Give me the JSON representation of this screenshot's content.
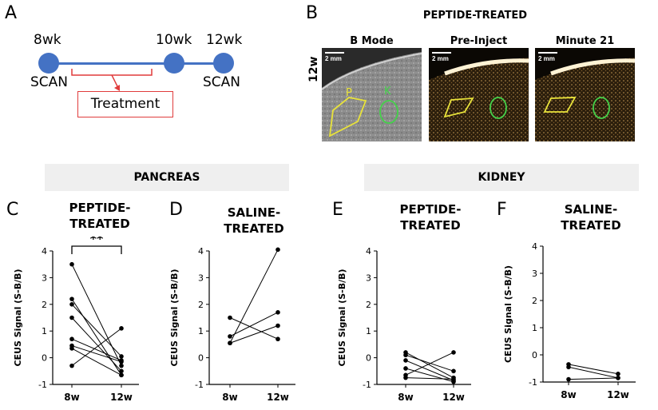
{
  "panels": {
    "a": "A",
    "b": "B",
    "c": "C",
    "d": "D",
    "e": "E",
    "f": "F"
  },
  "timeline": {
    "label_8wk": "8wk",
    "label_10wk": "10wk",
    "label_12wk": "12wk",
    "scan_left": "SCAN",
    "scan_right": "SCAN",
    "treatment": "Treatment",
    "colors": {
      "line": "#4472c4",
      "treatment": "#e03c3c"
    }
  },
  "imaging": {
    "title": "PEPTIDE-TREATED",
    "columns": [
      "B Mode",
      "Pre-Inject",
      "Minute 21"
    ],
    "row_label": "12w",
    "scale": "2 mm",
    "roi_p": "P",
    "roi_k": "K"
  },
  "sections": {
    "pancreas": "PANCREAS",
    "kidney": "KIDNEY"
  },
  "chart_data": [
    {
      "type": "line",
      "title": [
        "PEPTIDE-",
        "TREATED"
      ],
      "ylabel": "CEUS Signal (S-B/B)",
      "categories": [
        "8w",
        "12w"
      ],
      "ylim": [
        -1,
        4
      ],
      "yticks": [
        "-1",
        "0",
        "1",
        "2",
        "3",
        "4"
      ],
      "significance": "**",
      "pairs": [
        [
          3.5,
          -0.3
        ],
        [
          2.2,
          -0.65
        ],
        [
          2.0,
          0.05
        ],
        [
          1.5,
          -0.5
        ],
        [
          0.7,
          -0.1
        ],
        [
          0.45,
          -0.15
        ],
        [
          0.35,
          -0.65
        ],
        [
          -0.3,
          1.1
        ]
      ]
    },
    {
      "type": "line",
      "title": [
        "SALINE-",
        "TREATED"
      ],
      "ylabel": "CEUS Signal (S-B/B)",
      "categories": [
        "8w",
        "12w"
      ],
      "ylim": [
        -1,
        4
      ],
      "yticks": [
        "-1",
        "0",
        "1",
        "2",
        "3",
        "4"
      ],
      "pairs": [
        [
          1.5,
          0.7
        ],
        [
          0.8,
          1.7
        ],
        [
          0.55,
          4.05
        ],
        [
          0.55,
          1.2
        ]
      ]
    },
    {
      "type": "line",
      "title": [
        "PEPTIDE-",
        "TREATED"
      ],
      "ylabel": "CEUS Signal (S-B/B)",
      "categories": [
        "8w",
        "12w"
      ],
      "ylim": [
        -1,
        4
      ],
      "yticks": [
        "-1",
        "0",
        "1",
        "2",
        "3",
        "4"
      ],
      "pairs": [
        [
          0.2,
          -0.75
        ],
        [
          0.1,
          -0.5
        ],
        [
          -0.1,
          -0.85
        ],
        [
          -0.4,
          -0.9
        ],
        [
          -0.65,
          0.2
        ],
        [
          -0.75,
          -0.8
        ]
      ]
    },
    {
      "type": "line",
      "title": [
        "SALINE-",
        "TREATED"
      ],
      "ylabel": "CEUS Signal (S-B/B)",
      "categories": [
        "8w",
        "12w"
      ],
      "ylim": [
        -1,
        4
      ],
      "yticks": [
        "-1",
        "0",
        "1",
        "2",
        "3",
        "4"
      ],
      "pairs": [
        [
          -0.35,
          -0.7
        ],
        [
          -0.45,
          -0.85
        ],
        [
          -0.9,
          -0.85
        ]
      ]
    }
  ]
}
